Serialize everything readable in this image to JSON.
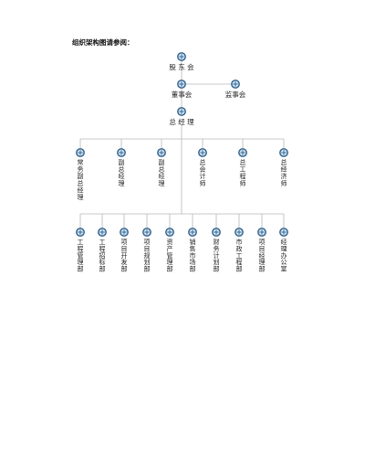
{
  "heading": "组织架构图请参阅：",
  "colors": {
    "line": "#b8b8b8",
    "node_ring": "#2f5f8a",
    "node_fill": "#cfe3f3",
    "text": "#222222"
  },
  "node_icon": "circled-cross-icon",
  "org_chart": {
    "root": {
      "label": "股 东 会"
    },
    "level2": [
      {
        "label": "董事会"
      },
      {
        "label": "监事会"
      }
    ],
    "level3": {
      "label": "总 经 理"
    },
    "level4": [
      "常务副总经理",
      "副总经理",
      "副总经理",
      "总会计师",
      "总工程师",
      "总经济师"
    ],
    "level5": [
      "工程管理部",
      "工程招标部",
      "项目开发部",
      "项目规划部",
      "资产管理部",
      "销售市场部",
      "财务计划部",
      "市政工程部",
      "项目经理部",
      "经理办公室"
    ]
  }
}
